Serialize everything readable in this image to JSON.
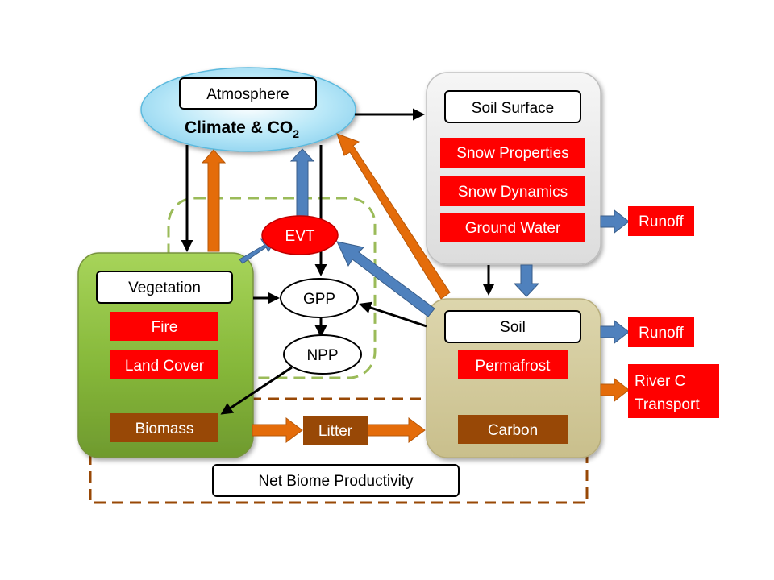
{
  "atmosphere": {
    "title": "Atmosphere",
    "climate_text": "Climate & CO",
    "climate_subscript": "2"
  },
  "soil_surface": {
    "title": "Soil Surface",
    "items": [
      "Snow Properties",
      "Snow Dynamics",
      "Ground Water"
    ]
  },
  "vegetation": {
    "title": "Vegetation",
    "items": [
      "Fire",
      "Land Cover"
    ],
    "pool": "Biomass"
  },
  "soil": {
    "title": "Soil",
    "items": [
      "Permafrost"
    ],
    "pool": "Carbon"
  },
  "fluxes": {
    "evt": "EVT",
    "gpp": "GPP",
    "npp": "NPP",
    "litter": "Litter"
  },
  "outputs": {
    "runoff_surface": "Runoff",
    "runoff_soil": "Runoff",
    "river_line1": "River C",
    "river_line2": "Transport"
  },
  "nbp_label": "Net Biome Productivity",
  "colors": {
    "red": "#ff0000",
    "brown": "#984806",
    "orange_arrow": "#e46c0a",
    "blue_arrow": "#4f81bd",
    "black_arrow": "#000000",
    "dashed_green": "#9bbb59",
    "dashed_brown": "#984806"
  }
}
